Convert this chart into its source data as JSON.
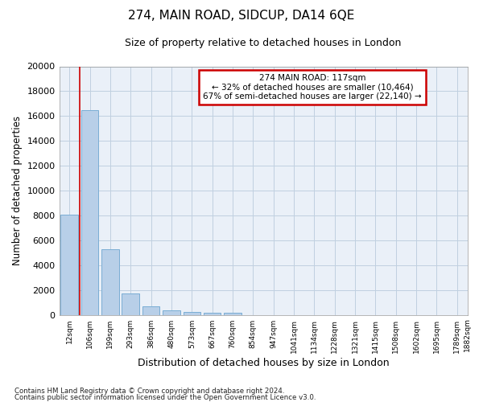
{
  "title1": "274, MAIN ROAD, SIDCUP, DA14 6QE",
  "title2": "Size of property relative to detached houses in London",
  "xlabel": "Distribution of detached houses by size in London",
  "ylabel": "Number of detached properties",
  "bar_color": "#b8cfe8",
  "bar_edge_color": "#7aadd4",
  "bins": [
    "12sqm",
    "106sqm",
    "199sqm",
    "293sqm",
    "386sqm",
    "480sqm",
    "573sqm",
    "667sqm",
    "760sqm",
    "854sqm",
    "947sqm",
    "1041sqm",
    "1134sqm",
    "1228sqm",
    "1321sqm",
    "1415sqm",
    "1508sqm",
    "1602sqm",
    "1695sqm",
    "1789sqm",
    "1882sqm"
  ],
  "values": [
    8100,
    16500,
    5300,
    1750,
    680,
    380,
    280,
    220,
    200,
    0,
    0,
    0,
    0,
    0,
    0,
    0,
    0,
    0,
    0,
    0
  ],
  "ylim": [
    0,
    20000
  ],
  "yticks": [
    0,
    2000,
    4000,
    6000,
    8000,
    10000,
    12000,
    14000,
    16000,
    18000,
    20000
  ],
  "annotation_text": "274 MAIN ROAD: 117sqm\n← 32% of detached houses are smaller (10,464)\n67% of semi-detached houses are larger (22,140) →",
  "annotation_box_color": "#ffffff",
  "annotation_box_edgecolor": "#cc0000",
  "vline_color": "#cc0000",
  "grid_color": "#c0d0e0",
  "background_color": "#eaf0f8",
  "footer1": "Contains HM Land Registry data © Crown copyright and database right 2024.",
  "footer2": "Contains public sector information licensed under the Open Government Licence v3.0."
}
